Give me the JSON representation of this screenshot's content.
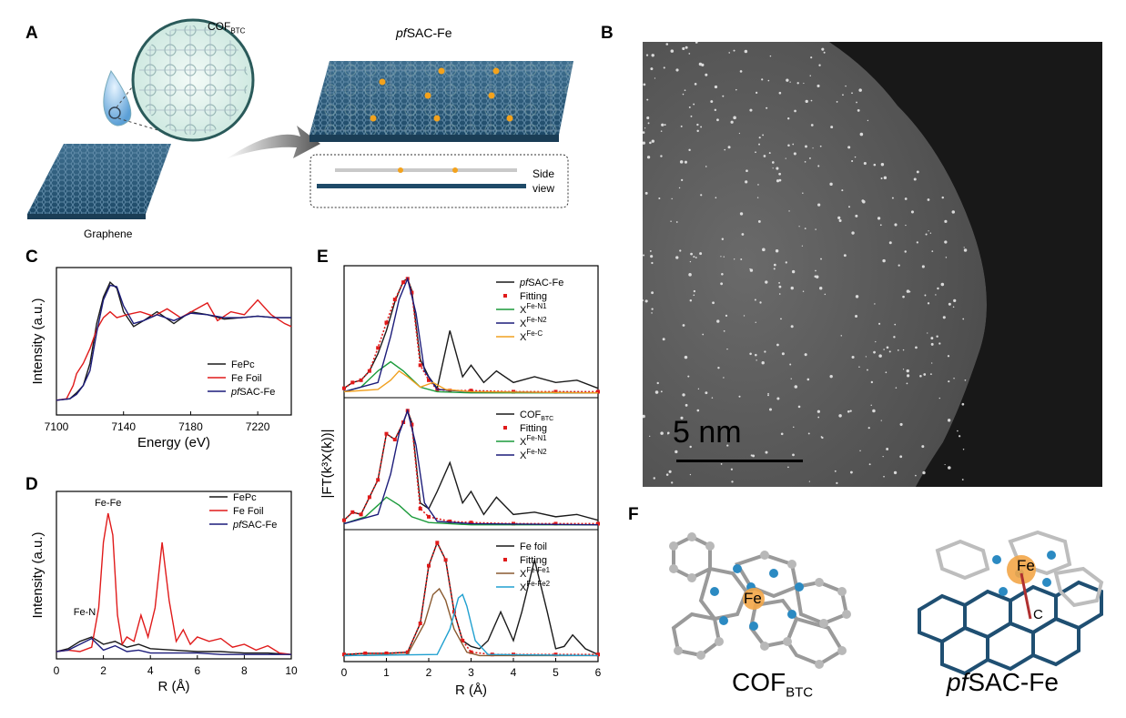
{
  "panels": {
    "A": "A",
    "B": "B",
    "C": "C",
    "D": "D",
    "E": "E",
    "F": "F"
  },
  "panel_a": {
    "cof_label": "COF",
    "cof_sub": "BTC",
    "product_label_italic": "pf",
    "product_label_rest": "SAC-Fe",
    "graphene_label": "Graphene",
    "side_view_line1": "Side",
    "side_view_line2": "view"
  },
  "panel_b": {
    "scale_label": "5 nm"
  },
  "panel_f": {
    "left_fe": "Fe",
    "right_fe": "Fe",
    "right_c": "C",
    "left_caption_main": "COF",
    "left_caption_sub": "BTC",
    "right_caption_italic": "pf",
    "right_caption_rest": "SAC-Fe"
  },
  "chart_data": [
    {
      "id": "C",
      "type": "line",
      "xlabel": "Energy (eV)",
      "ylabel": "Intensity (a.u.)",
      "xlim": [
        7100,
        7240
      ],
      "xticks": [
        7100,
        7140,
        7180,
        7220
      ],
      "series": [
        {
          "name": "FePc",
          "color": "#1a1a1a",
          "x": [
            7100,
            7108,
            7112,
            7116,
            7120,
            7124,
            7128,
            7132,
            7136,
            7140,
            7146,
            7152,
            7160,
            7170,
            7180,
            7190,
            7200,
            7210,
            7220,
            7230,
            7240
          ],
          "y": [
            0.2,
            0.21,
            0.25,
            0.3,
            0.45,
            0.72,
            0.9,
            1.0,
            0.96,
            0.8,
            0.7,
            0.74,
            0.8,
            0.72,
            0.8,
            0.78,
            0.75,
            0.76,
            0.77,
            0.76,
            0.76
          ]
        },
        {
          "name": "Fe Foil",
          "color": "#e01a1a",
          "x": [
            7100,
            7106,
            7110,
            7112,
            7116,
            7120,
            7124,
            7128,
            7132,
            7136,
            7142,
            7150,
            7158,
            7166,
            7174,
            7182,
            7190,
            7196,
            7204,
            7212,
            7220,
            7228,
            7236,
            7240
          ],
          "y": [
            0.2,
            0.21,
            0.3,
            0.38,
            0.45,
            0.55,
            0.68,
            0.76,
            0.8,
            0.76,
            0.78,
            0.8,
            0.77,
            0.82,
            0.76,
            0.81,
            0.86,
            0.74,
            0.8,
            0.78,
            0.88,
            0.78,
            0.72,
            0.7
          ]
        },
        {
          "name": "pfSAC-Fe",
          "color": "#1c1c7a",
          "x": [
            7100,
            7108,
            7112,
            7116,
            7120,
            7124,
            7128,
            7132,
            7136,
            7140,
            7146,
            7152,
            7160,
            7170,
            7180,
            7190,
            7200,
            7210,
            7220,
            7230,
            7240
          ],
          "y": [
            0.2,
            0.21,
            0.24,
            0.3,
            0.4,
            0.66,
            0.88,
            0.98,
            0.97,
            0.84,
            0.72,
            0.74,
            0.78,
            0.74,
            0.79,
            0.78,
            0.76,
            0.76,
            0.77,
            0.76,
            0.76
          ]
        }
      ]
    },
    {
      "id": "D",
      "type": "line",
      "xlabel": "R (Å)",
      "ylabel": "Intensity (a.u.)",
      "xlim": [
        0,
        10
      ],
      "xticks": [
        0,
        2,
        4,
        6,
        8,
        10
      ],
      "annotations": [
        {
          "text": "Fe-Fe",
          "x": 2.2,
          "y": 1.05
        },
        {
          "text": "Fe-N",
          "x": 1.2,
          "y": 0.3
        }
      ],
      "series": [
        {
          "name": "FePc",
          "color": "#1a1a1a",
          "x": [
            0,
            0.5,
            1.0,
            1.5,
            2.0,
            2.5,
            3.0,
            3.5,
            4.0,
            5,
            6,
            7,
            8,
            9,
            10
          ],
          "y": [
            0.05,
            0.07,
            0.12,
            0.15,
            0.1,
            0.12,
            0.08,
            0.1,
            0.07,
            0.06,
            0.05,
            0.05,
            0.04,
            0.04,
            0.03
          ]
        },
        {
          "name": "Fe Foil",
          "color": "#e01a1a",
          "x": [
            0,
            0.5,
            1.0,
            1.5,
            1.8,
            2.0,
            2.2,
            2.4,
            2.6,
            2.8,
            3.0,
            3.3,
            3.6,
            3.9,
            4.2,
            4.5,
            4.8,
            5.1,
            5.4,
            5.7,
            6.0,
            6.5,
            7.0,
            7.5,
            8.0,
            8.5,
            9.0,
            9.5,
            10
          ],
          "y": [
            0.05,
            0.06,
            0.05,
            0.08,
            0.35,
            0.8,
            1.0,
            0.85,
            0.3,
            0.1,
            0.15,
            0.12,
            0.3,
            0.15,
            0.35,
            0.8,
            0.4,
            0.12,
            0.2,
            0.1,
            0.15,
            0.12,
            0.14,
            0.08,
            0.1,
            0.06,
            0.09,
            0.04,
            0.03
          ]
        },
        {
          "name": "pfSAC-Fe",
          "color": "#1c1c7a",
          "x": [
            0,
            0.5,
            1.0,
            1.5,
            2.0,
            2.5,
            3.0,
            3.5,
            4.0,
            5,
            6,
            7,
            8,
            9,
            10
          ],
          "y": [
            0.05,
            0.06,
            0.1,
            0.14,
            0.06,
            0.09,
            0.05,
            0.06,
            0.04,
            0.04,
            0.04,
            0.03,
            0.03,
            0.03,
            0.03
          ]
        }
      ]
    },
    {
      "id": "E",
      "type": "line",
      "xlabel": "R (Å)",
      "ylabel": "|FT(k³X(k))|",
      "xlim": [
        0,
        6
      ],
      "xticks": [
        0,
        1,
        2,
        3,
        4,
        5,
        6
      ],
      "subpanels": [
        {
          "legend": [
            {
              "label": "pfSAC-Fe"
            },
            {
              "label": "Fitting"
            },
            {
              "label": "XFe-N1"
            },
            {
              "label": "XFe-N2"
            },
            {
              "label": "XFe-C"
            }
          ],
          "series": [
            {
              "name": "pfSAC-Fe",
              "color": "#1a1a1a",
              "x": [
                0,
                0.2,
                0.4,
                0.6,
                0.8,
                1.0,
                1.2,
                1.4,
                1.5,
                1.6,
                1.8,
                2.0,
                2.2,
                2.5,
                2.8,
                3.0,
                3.3,
                3.6,
                4.0,
                4.5,
                5.0,
                5.5,
                6.0
              ],
              "y": [
                0.05,
                0.1,
                0.12,
                0.2,
                0.35,
                0.55,
                0.8,
                0.98,
                1.0,
                0.9,
                0.3,
                0.15,
                0.05,
                0.55,
                0.15,
                0.25,
                0.1,
                0.2,
                0.1,
                0.15,
                0.1,
                0.12,
                0.05
              ]
            },
            {
              "name": "Fitting",
              "color": "#e01a1a",
              "x": [
                0,
                0.2,
                0.4,
                0.6,
                0.8,
                1.0,
                1.2,
                1.4,
                1.5,
                1.6,
                1.8,
                2.0,
                2.2,
                2.5,
                3.0,
                4.0,
                5.0,
                6.0
              ],
              "y": [
                0.05,
                0.1,
                0.12,
                0.2,
                0.4,
                0.62,
                0.82,
                0.97,
                1.0,
                0.88,
                0.25,
                0.12,
                0.04,
                0.03,
                0.03,
                0.02,
                0.02,
                0.02
              ]
            },
            {
              "name": "XFe-N1",
              "color": "#1a9a3a",
              "x": [
                0,
                0.4,
                0.8,
                1.1,
                1.4,
                1.8,
                2.2,
                3,
                6
              ],
              "y": [
                0.02,
                0.06,
                0.2,
                0.28,
                0.2,
                0.06,
                0.02,
                0.01,
                0.01
              ]
            },
            {
              "name": "XFe-N2",
              "color": "#1c1c7a",
              "x": [
                0,
                0.8,
                1.1,
                1.3,
                1.5,
                1.7,
                1.9,
                2.2,
                3,
                6
              ],
              "y": [
                0.02,
                0.1,
                0.5,
                0.82,
                1.0,
                0.7,
                0.2,
                0.04,
                0.02,
                0.01
              ]
            },
            {
              "name": "XFe-C",
              "color": "#f0a020",
              "x": [
                0,
                0.8,
                1.1,
                1.3,
                1.5,
                1.8,
                2.1,
                2.4,
                3,
                6
              ],
              "y": [
                0.02,
                0.04,
                0.12,
                0.2,
                0.15,
                0.06,
                0.1,
                0.04,
                0.02,
                0.01
              ]
            }
          ]
        },
        {
          "legend": [
            {
              "label": "COFBTC"
            },
            {
              "label": "Fitting"
            },
            {
              "label": "XFe-N1"
            },
            {
              "label": "XFe-N2"
            }
          ],
          "series": [
            {
              "name": "COFBTC",
              "color": "#1a1a1a",
              "x": [
                0,
                0.2,
                0.4,
                0.6,
                0.8,
                1.0,
                1.2,
                1.4,
                1.5,
                1.6,
                1.8,
                2.0,
                2.2,
                2.5,
                2.8,
                3.0,
                3.3,
                3.6,
                4.0,
                4.5,
                5.0,
                5.5,
                6.0
              ],
              "y": [
                0.05,
                0.12,
                0.1,
                0.25,
                0.4,
                0.8,
                0.75,
                0.9,
                1.0,
                0.9,
                0.2,
                0.15,
                0.3,
                0.55,
                0.2,
                0.3,
                0.1,
                0.25,
                0.1,
                0.12,
                0.08,
                0.1,
                0.05
              ]
            },
            {
              "name": "Fitting",
              "color": "#e01a1a",
              "x": [
                0,
                0.2,
                0.4,
                0.6,
                0.8,
                1.0,
                1.2,
                1.4,
                1.5,
                1.6,
                1.8,
                2.0,
                2.5,
                3.0,
                4.0,
                5.0,
                6.0
              ],
              "y": [
                0.05,
                0.12,
                0.1,
                0.25,
                0.4,
                0.8,
                0.75,
                0.9,
                1.0,
                0.88,
                0.15,
                0.08,
                0.04,
                0.03,
                0.02,
                0.02,
                0.02
              ]
            },
            {
              "name": "XFe-N1",
              "color": "#1a9a3a",
              "x": [
                0,
                0.5,
                0.8,
                1.0,
                1.3,
                1.6,
                2.0,
                3,
                6
              ],
              "y": [
                0.02,
                0.08,
                0.18,
                0.25,
                0.18,
                0.08,
                0.03,
                0.01,
                0.01
              ]
            },
            {
              "name": "XFe-N2",
              "color": "#1c1c7a",
              "x": [
                0,
                0.8,
                1.1,
                1.3,
                1.5,
                1.7,
                1.9,
                2.2,
                3,
                6
              ],
              "y": [
                0.02,
                0.1,
                0.45,
                0.8,
                1.0,
                0.7,
                0.2,
                0.04,
                0.02,
                0.01
              ]
            }
          ]
        },
        {
          "legend": [
            {
              "label": "Fe foil"
            },
            {
              "label": "Fitting"
            },
            {
              "label": "XFe-Fe1"
            },
            {
              "label": "XFe-Fe2"
            }
          ],
          "series": [
            {
              "name": "Fe foil",
              "color": "#1a1a1a",
              "x": [
                0,
                0.5,
                1.0,
                1.5,
                1.8,
                2.0,
                2.2,
                2.4,
                2.6,
                2.8,
                3.0,
                3.2,
                3.4,
                3.7,
                4.0,
                4.2,
                4.5,
                4.8,
                5.0,
                5.2,
                5.4,
                5.7,
                6.0
              ],
              "y": [
                0.03,
                0.04,
                0.04,
                0.05,
                0.3,
                0.8,
                1.0,
                0.85,
                0.4,
                0.15,
                0.1,
                0.08,
                0.15,
                0.4,
                0.15,
                0.4,
                0.85,
                0.4,
                0.08,
                0.1,
                0.2,
                0.08,
                0.03
              ]
            },
            {
              "name": "Fitting",
              "color": "#e01a1a",
              "x": [
                0,
                0.5,
                1.0,
                1.5,
                1.8,
                2.0,
                2.2,
                2.4,
                2.6,
                2.8,
                3.0,
                3.5,
                4.0,
                5.0,
                6.0
              ],
              "y": [
                0.03,
                0.04,
                0.04,
                0.05,
                0.3,
                0.8,
                1.0,
                0.85,
                0.4,
                0.15,
                0.05,
                0.03,
                0.03,
                0.03,
                0.03
              ]
            },
            {
              "name": "XFe-Fe1",
              "color": "#8a5a30",
              "x": [
                0,
                1.5,
                1.9,
                2.1,
                2.25,
                2.4,
                2.6,
                2.9,
                3.2,
                6
              ],
              "y": [
                0.02,
                0.03,
                0.3,
                0.55,
                0.6,
                0.5,
                0.25,
                0.05,
                0.02,
                0.02
              ]
            },
            {
              "name": "XFe-Fe2",
              "color": "#20a0d0",
              "x": [
                0,
                2.2,
                2.5,
                2.7,
                2.8,
                2.9,
                3.1,
                3.4,
                6
              ],
              "y": [
                0.02,
                0.03,
                0.25,
                0.52,
                0.55,
                0.45,
                0.15,
                0.03,
                0.02
              ]
            }
          ]
        }
      ]
    }
  ]
}
